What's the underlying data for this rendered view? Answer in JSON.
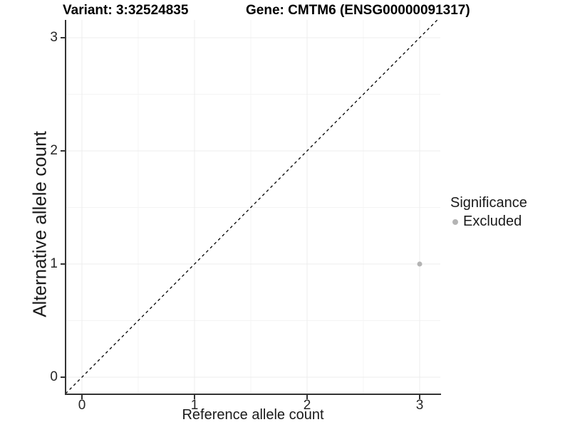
{
  "header": {
    "variant_title": "Variant: 3:32524835",
    "gene_title": "Gene: CMTM6 (ENSG00000091317)"
  },
  "chart_data": {
    "type": "scatter",
    "xlabel": "Reference allele count",
    "ylabel": "Alternative allele count",
    "x_ticks": [
      0,
      1,
      2,
      3
    ],
    "y_ticks": [
      0,
      1,
      2,
      3
    ],
    "xlim": [
      -0.1456,
      3.1835
    ],
    "ylim": [
      -0.1447,
      3.157
    ],
    "grid": "major and minor, light gray, on white panel",
    "minor_ticks_step": 0.5,
    "identity_line": {
      "slope": 1,
      "intercept": 0,
      "style": "dashed",
      "color": "#000000"
    },
    "series": [
      {
        "name": "Excluded",
        "color": "#b4b4b4",
        "points": [
          {
            "x": 3,
            "y": 1
          }
        ]
      }
    ],
    "legend": {
      "title": "Significance",
      "position": "right",
      "entries": [
        {
          "label": "Excluded",
          "color": "#b4b4b4"
        }
      ]
    }
  },
  "colors": {
    "grid_major": "#ececec",
    "grid_minor": "#f4f4f4",
    "axis_line": "#333333",
    "dashed_line": "#000000",
    "point": "#b4b4b4",
    "background": "#ffffff"
  }
}
